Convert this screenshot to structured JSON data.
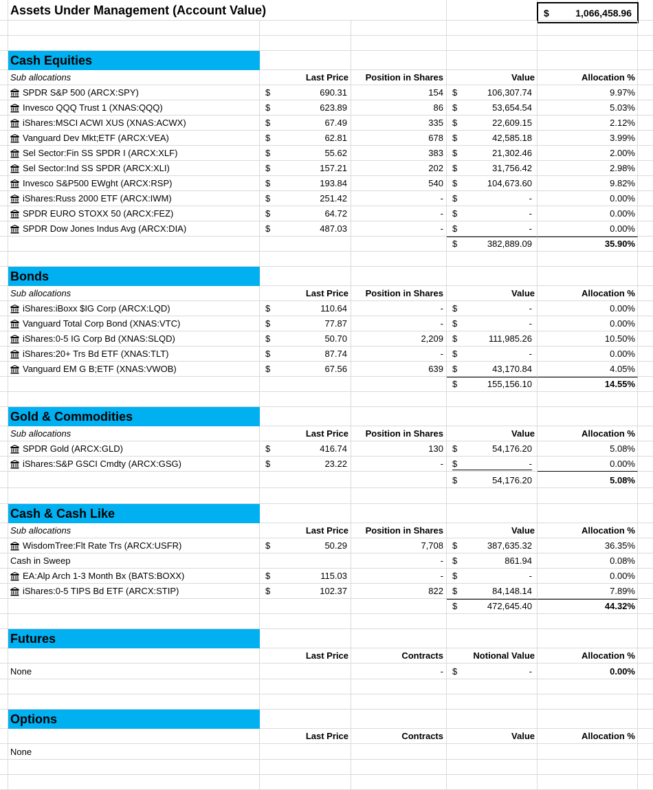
{
  "title": "Assets Under Management (Account Value)",
  "account_value": {
    "currency": "$",
    "value": "1,066,458.96"
  },
  "colors": {
    "section_header_bg": "#00B0F0",
    "gridline": "#DADADA"
  },
  "icon_name": "bank-building-icon",
  "sections": [
    {
      "name": "Cash Equities",
      "sub_label": "Sub allocations",
      "columns": {
        "last_price": "Last Price",
        "position": "Position in Shares",
        "value": "Value",
        "allocation": "Allocation %"
      },
      "items": [
        {
          "name": "SPDR S&P 500 (ARCX:SPY)",
          "icon": true,
          "price": "690.31",
          "shares": "154",
          "value": "106,307.74",
          "allocation": "9.97%"
        },
        {
          "name": "Invesco QQQ Trust 1 (XNAS:QQQ)",
          "icon": true,
          "price": "623.89",
          "shares": "86",
          "value": "53,654.54",
          "allocation": "5.03%"
        },
        {
          "name": "iShares:MSCI ACWI XUS (XNAS:ACWX)",
          "icon": true,
          "price": "67.49",
          "shares": "335",
          "value": "22,609.15",
          "allocation": "2.12%"
        },
        {
          "name": "Vanguard Dev Mkt;ETF (ARCX:VEA)",
          "icon": true,
          "price": "62.81",
          "shares": "678",
          "value": "42,585.18",
          "allocation": "3.99%"
        },
        {
          "name": "Sel Sector:Fin SS SPDR I (ARCX:XLF)",
          "icon": true,
          "price": "55.62",
          "shares": "383",
          "value": "21,302.46",
          "allocation": "2.00%"
        },
        {
          "name": "Sel Sector:Ind SS SPDR (ARCX:XLI)",
          "icon": true,
          "price": "157.21",
          "shares": "202",
          "value": "31,756.42",
          "allocation": "2.98%"
        },
        {
          "name": "Invesco S&P500 EWght (ARCX:RSP)",
          "icon": true,
          "price": "193.84",
          "shares": "540",
          "value": "104,673.60",
          "allocation": "9.82%"
        },
        {
          "name": "iShares:Russ 2000 ETF (ARCX:IWM)",
          "icon": true,
          "price": "251.42",
          "shares": "-",
          "value": "-",
          "allocation": "0.00%"
        },
        {
          "name": "SPDR EURO STOXX 50 (ARCX:FEZ)",
          "icon": true,
          "price": "64.72",
          "shares": "-",
          "value": "-",
          "allocation": "0.00%"
        },
        {
          "name": "SPDR Dow Jones Indus Avg (ARCX:DIA)",
          "icon": true,
          "price": "487.03",
          "shares": "-",
          "value": "-",
          "allocation": "0.00%"
        }
      ],
      "total": {
        "value": "382,889.09",
        "allocation": "35.90%"
      }
    },
    {
      "name": "Bonds",
      "sub_label": "Sub allocations",
      "columns": {
        "last_price": "Last Price",
        "position": "Position in Shares",
        "value": "Value",
        "allocation": "Allocation %"
      },
      "items": [
        {
          "name": "iShares:iBoxx $IG Corp (ARCX:LQD)",
          "icon": true,
          "price": "110.64",
          "shares": "-",
          "value": "-",
          "allocation": "0.00%"
        },
        {
          "name": "Vanguard Total Corp Bond (XNAS:VTC)",
          "icon": true,
          "price": "77.87",
          "shares": "-",
          "value": "-",
          "allocation": "0.00%"
        },
        {
          "name": "iShares:0-5 IG Corp Bd (XNAS:SLQD)",
          "icon": true,
          "price": "50.70",
          "shares": "2,209",
          "value": "111,985.26",
          "allocation": "10.50%"
        },
        {
          "name": "iShares:20+ Trs Bd ETF (XNAS:TLT)",
          "icon": true,
          "price": "87.74",
          "shares": "-",
          "value": "-",
          "allocation": "0.00%"
        },
        {
          "name": "Vanguard EM G B;ETF (XNAS:VWOB)",
          "icon": true,
          "price": "67.56",
          "shares": "639",
          "value": "43,170.84",
          "allocation": "4.05%"
        }
      ],
      "total": {
        "value": "155,156.10",
        "allocation": "14.55%"
      }
    },
    {
      "name": "Gold & Commodities",
      "sub_label": "Sub allocations",
      "columns": {
        "last_price": "Last Price",
        "position": "Position in Shares",
        "value": "Value",
        "allocation": "Allocation %"
      },
      "items": [
        {
          "name": "SPDR Gold (ARCX:GLD)",
          "icon": true,
          "price": "416.74",
          "shares": "130",
          "value": "54,176.20",
          "allocation": "5.08%"
        },
        {
          "name": "iShares:S&P GSCI Cmdty (ARCX:GSG)",
          "icon": true,
          "price": "23.22",
          "shares": "-",
          "value": "-",
          "allocation": "0.00%"
        }
      ],
      "total": {
        "value": "54,176.20",
        "allocation": "5.08%"
      }
    },
    {
      "name": "Cash & Cash Like",
      "sub_label": "Sub allocations",
      "columns": {
        "last_price": "Last Price",
        "position": "Position in Shares",
        "value": "Value",
        "allocation": "Allocation %"
      },
      "items": [
        {
          "name": "WisdomTree:Flt Rate Trs (ARCX:USFR)",
          "icon": true,
          "price": "50.29",
          "shares": "7,708",
          "value": "387,635.32",
          "allocation": "36.35%"
        },
        {
          "name": "Cash in Sweep",
          "icon": false,
          "price": "",
          "shares": "-",
          "value": "861.94",
          "allocation": "0.08%"
        },
        {
          "name": "EA:Alp Arch 1-3 Month Bx (BATS:BOXX)",
          "icon": true,
          "price": "115.03",
          "shares": "-",
          "value": "-",
          "allocation": "0.00%"
        },
        {
          "name": "iShares:0-5 TIPS Bd ETF (ARCX:STIP)",
          "icon": true,
          "price": "102.37",
          "shares": "822",
          "value": "84,148.14",
          "allocation": "7.89%"
        }
      ],
      "total": {
        "value": "472,645.40",
        "allocation": "44.32%"
      }
    },
    {
      "name": "Futures",
      "sub_label": "",
      "columns": {
        "last_price": "Last Price",
        "position": "Contracts",
        "value": "Notional Value",
        "allocation": "Allocation %"
      },
      "none_row": {
        "name": "None",
        "shares": "-",
        "value": "-",
        "allocation": "0.00%"
      }
    },
    {
      "name": "Options",
      "sub_label": "",
      "columns": {
        "last_price": "Last Price",
        "position": "Contracts",
        "value": "Value",
        "allocation": "Allocation %"
      },
      "none_row": {
        "name": "None"
      }
    }
  ]
}
